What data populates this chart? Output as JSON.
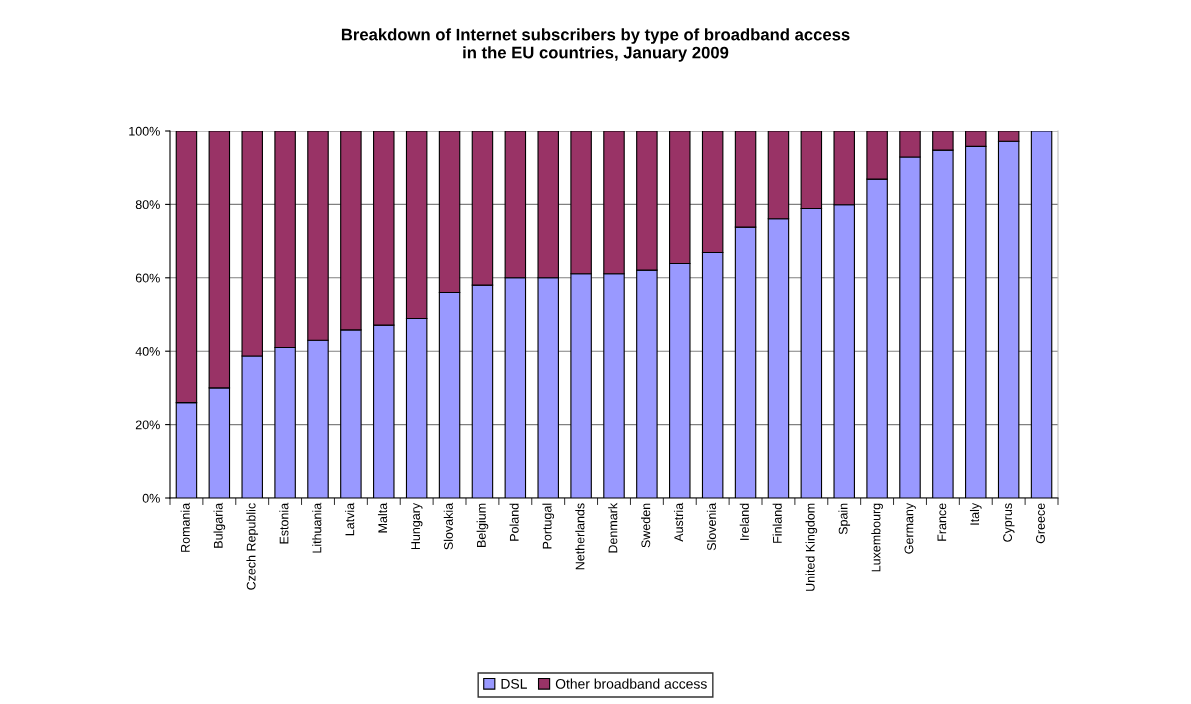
{
  "chart_data": {
    "type": "bar",
    "stacked": true,
    "title": "Breakdown of Internet subscribers by type of broadband access\nin the EU countries, January 2009",
    "categories": [
      "Romania",
      "Bulgaria",
      "Czech Republic",
      "Estonia",
      "Lithuania",
      "Latvia",
      "Malta",
      "Hungary",
      "Slovakia",
      "Belgium",
      "Poland",
      "Portugal",
      "Netherlands",
      "Denmark",
      "Sweden",
      "Austria",
      "Slovenia",
      "Ireland",
      "Finland",
      "United Kingdom",
      "Spain",
      "Luxembourg",
      "Germany",
      "France",
      "Italy",
      "Cyprus",
      "Greece"
    ],
    "series": [
      {
        "name": "DSL",
        "color": "#9999ff",
        "values": [
          26,
          30,
          38.7,
          41,
          43,
          45.8,
          47.1,
          48.9,
          56,
          58,
          60,
          60,
          61.1,
          61.1,
          62.1,
          63.9,
          66.9,
          73.8,
          76.1,
          78.9,
          79.9,
          86.9,
          92.9,
          94.8,
          95.8,
          97.2,
          100
        ]
      },
      {
        "name": "Other broadband access",
        "color": "#993366",
        "values": [
          74,
          70,
          61.3,
          59,
          57,
          54.2,
          52.9,
          51.1,
          44,
          42,
          40,
          40,
          38.9,
          38.9,
          37.9,
          36.1,
          33.1,
          26.2,
          23.9,
          21.1,
          20.1,
          13.1,
          7.1,
          5.2,
          4.2,
          2.8,
          0
        ]
      }
    ],
    "ylim": [
      0,
      100
    ],
    "yticks": [
      {
        "value": 0,
        "label": "0%"
      },
      {
        "value": 20,
        "label": "20%"
      },
      {
        "value": 40,
        "label": "40%"
      },
      {
        "value": 60,
        "label": "60%"
      },
      {
        "value": 80,
        "label": "80%"
      },
      {
        "value": 100,
        "label": "100%"
      }
    ],
    "grid": "y",
    "legend": "bottom"
  }
}
